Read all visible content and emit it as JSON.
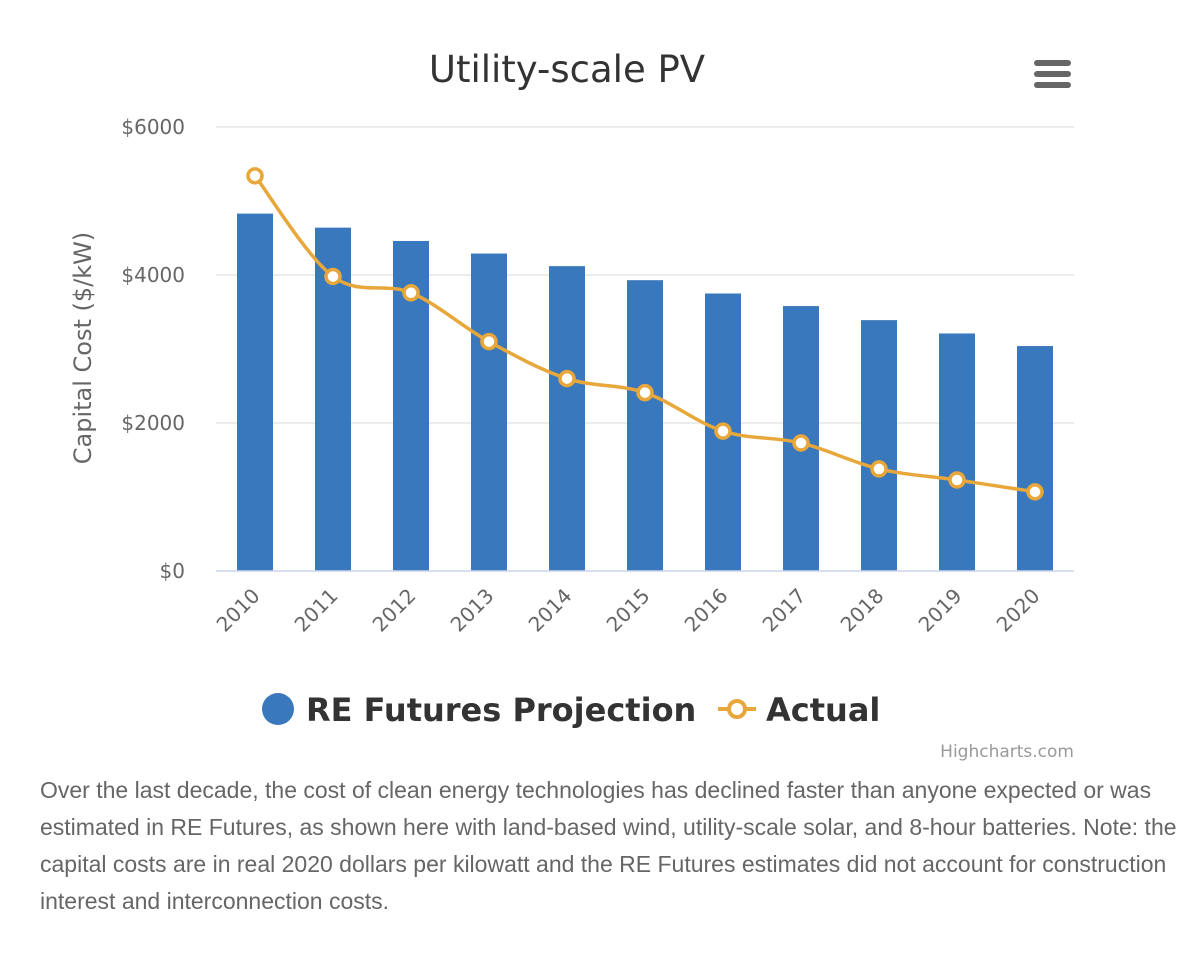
{
  "chart_data": {
    "type": "bar",
    "title": "Utility-scale PV",
    "ylabel": "Capital Cost ($/kW)",
    "xlabel": "",
    "ylim": [
      0,
      6000
    ],
    "yticks": [
      0,
      2000,
      4000,
      6000
    ],
    "ytick_labels": [
      "$0",
      "$2000",
      "$4000",
      "$6000"
    ],
    "categories": [
      "2010",
      "2011",
      "2012",
      "2013",
      "2014",
      "2015",
      "2016",
      "2017",
      "2018",
      "2019",
      "2020"
    ],
    "grid": true,
    "legend_position": "bottom",
    "series": [
      {
        "name": "RE Futures Projection",
        "type": "bar",
        "color": "#3a78bd",
        "values": [
          4830,
          4640,
          4460,
          4290,
          4120,
          3930,
          3750,
          3580,
          3390,
          3210,
          3040
        ]
      },
      {
        "name": "Actual",
        "type": "line",
        "color": "#e8a73a",
        "values": [
          5340,
          3980,
          3760,
          3100,
          2600,
          2410,
          1890,
          1730,
          1380,
          1230,
          1070
        ]
      }
    ],
    "credits": "Highcharts.com"
  },
  "menu": {
    "icon": "hamburger-menu-icon"
  },
  "caption": {
    "text": "Over the last decade, the cost of clean energy technologies has declined faster than anyone expected or was estimated in RE Futures, as shown here with land-based wind, utility-scale solar, and 8-hour batteries. Note: the capital costs are in real 2020 dollars per kilowatt and the RE Futures estimates did not account for construction interest and interconnection costs."
  }
}
